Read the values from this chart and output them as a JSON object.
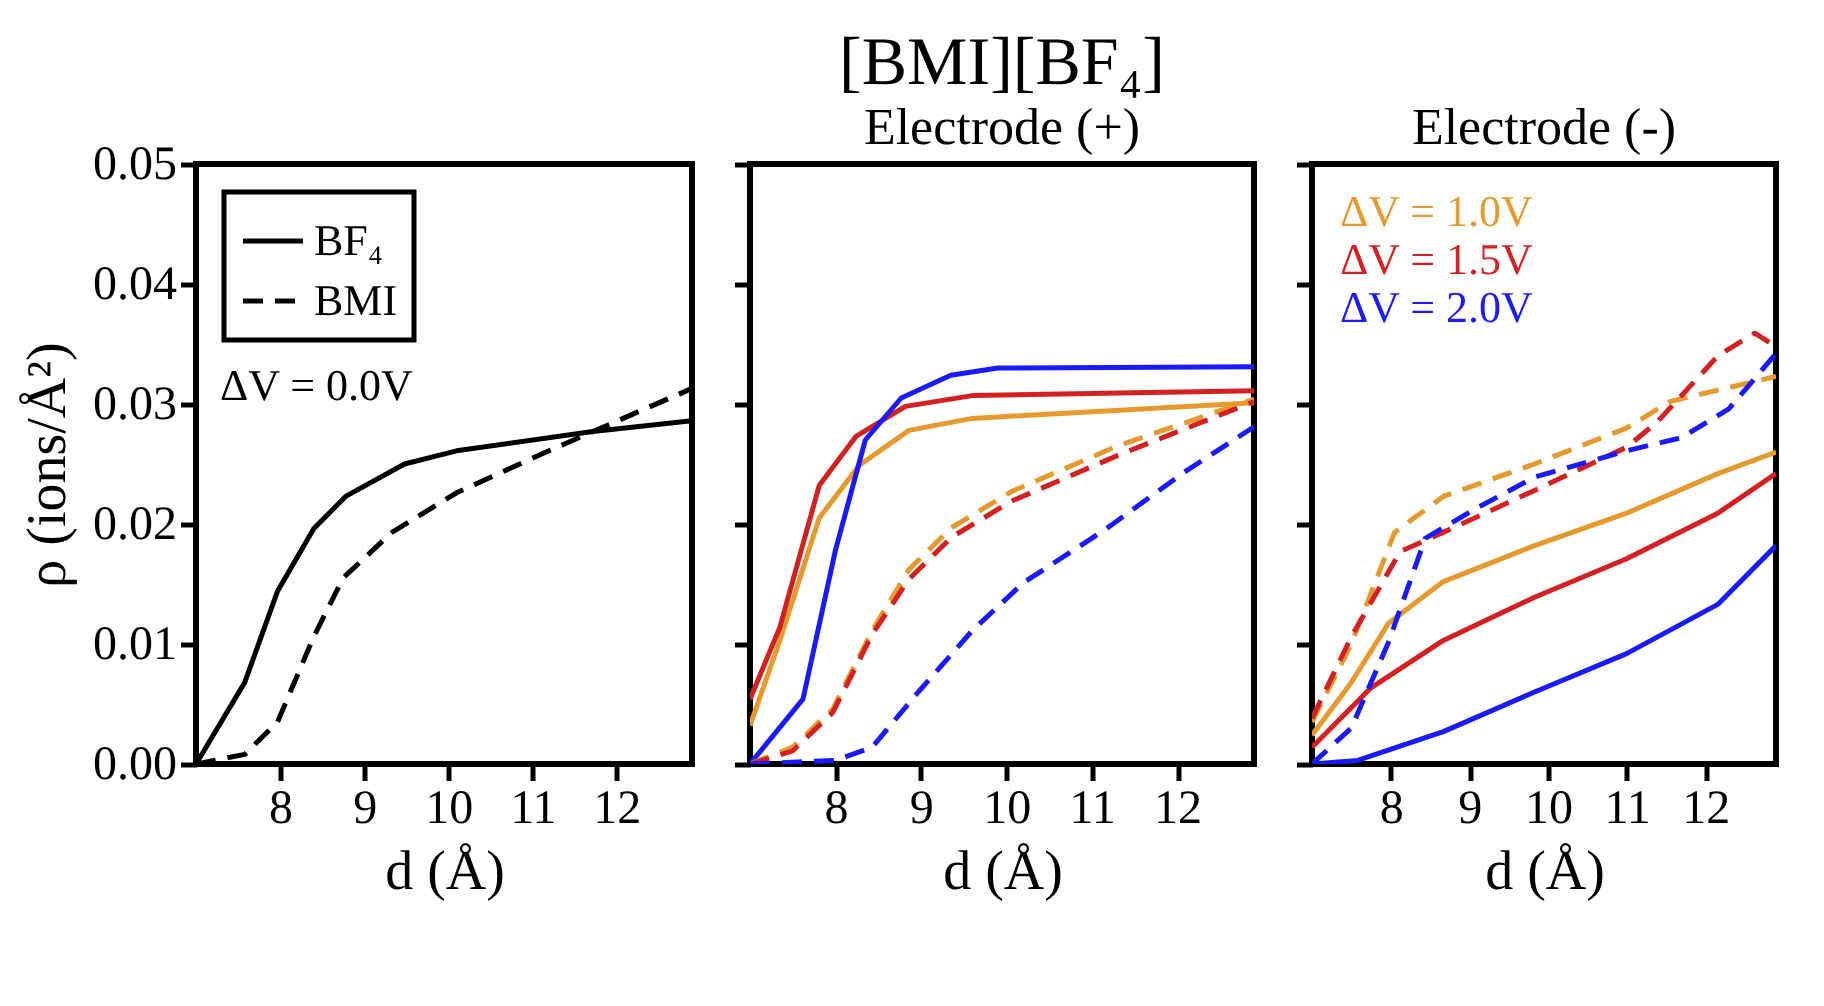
{
  "chart_data": [
    {
      "type": "line",
      "xlabel": "d (Å)",
      "ylabel": "ρ (ions/Å²)",
      "xlim": [
        7,
        12.9
      ],
      "ylim": [
        0,
        0.05
      ],
      "xticks": [
        8,
        9,
        10,
        11,
        12
      ],
      "yticks": [
        {
          "value": 0,
          "label": "0.00"
        },
        {
          "value": 0.01,
          "label": "0.01"
        },
        {
          "value": 0.02,
          "label": "0.02"
        },
        {
          "value": 0.03,
          "label": "0.03"
        },
        {
          "value": 0.04,
          "label": "0.04"
        },
        {
          "value": 0.05,
          "label": "0.05"
        }
      ],
      "legend": "top left",
      "annotations": [
        "ΔV = 0.0V"
      ],
      "series": [
        {
          "name": "BF₄",
          "color": "#000000",
          "line_style": "solid",
          "x": [
            7.0,
            7.58,
            7.97,
            8.4,
            8.78,
            9.48,
            10.1,
            11.72,
            12.9
          ],
          "values": [
            0,
            0.0068,
            0.0144,
            0.0196,
            0.0223,
            0.025,
            0.0261,
            0.0277,
            0.0286
          ]
        },
        {
          "name": "BMI",
          "color": "#000000",
          "line_style": "dashed",
          "x": [
            7.0,
            7.58,
            7.97,
            8.4,
            8.75,
            9.33,
            10.1,
            11.1,
            11.72,
            12.9
          ],
          "values": [
            0,
            0.0008,
            0.0035,
            0.0106,
            0.0155,
            0.0193,
            0.0226,
            0.0258,
            0.0277,
            0.0313
          ]
        }
      ]
    },
    {
      "type": "line",
      "title": "[BMI][BF₄]",
      "subtitle": "Electrode (+)",
      "xlabel": "d (Å)",
      "xlim": [
        7,
        12.9
      ],
      "ylim": [
        0,
        0.05
      ],
      "xticks": [
        8,
        9,
        10,
        11,
        12
      ],
      "yticks": [
        {
          "value": 0,
          "label": null
        },
        {
          "value": 0.01,
          "label": null
        },
        {
          "value": 0.02,
          "label": null
        },
        {
          "value": 0.03,
          "label": null
        },
        {
          "value": 0.04,
          "label": null
        },
        {
          "value": 0.05,
          "label": null
        }
      ],
      "tick_labels": "x",
      "series": [
        {
          "color": "#e69a2e",
          "line_style": "solid",
          "x": [
            7.0,
            7.35,
            7.81,
            8.28,
            8.86,
            9.6,
            12.9
          ],
          "values": [
            0.0032,
            0.0103,
            0.0205,
            0.0249,
            0.0278,
            0.0288,
            0.0301
          ]
        },
        {
          "color": "#d42020",
          "line_style": "solid",
          "x": [
            7.0,
            7.35,
            7.81,
            8.24,
            8.82,
            9.6,
            12.9
          ],
          "values": [
            0.0054,
            0.0114,
            0.0232,
            0.0273,
            0.0298,
            0.0307,
            0.0311
          ]
        },
        {
          "color": "#1a1aff",
          "line_style": "solid",
          "x": [
            7.0,
            7.62,
            8.0,
            8.35,
            8.77,
            9.35,
            9.9,
            12.9
          ],
          "values": [
            0,
            0.0054,
            0.0178,
            0.027,
            0.0305,
            0.0324,
            0.033,
            0.0331
          ]
        },
        {
          "color": "#e69a2e",
          "line_style": "dashed",
          "x": [
            7.0,
            7.5,
            7.97,
            8.43,
            8.86,
            9.36,
            10.06,
            11.3,
            12.9
          ],
          "values": [
            0,
            0.0014,
            0.0046,
            0.0111,
            0.0162,
            0.0197,
            0.0227,
            0.0265,
            0.0304
          ]
        },
        {
          "color": "#d42020",
          "line_style": "dashed",
          "x": [
            7.0,
            7.5,
            7.97,
            8.43,
            8.86,
            9.36,
            10.06,
            11.3,
            12.9
          ],
          "values": [
            0,
            0.0011,
            0.0043,
            0.0108,
            0.0154,
            0.0189,
            0.0219,
            0.0257,
            0.0302
          ]
        },
        {
          "color": "#1a1aff",
          "line_style": "dashed",
          "x": [
            7.0,
            8.0,
            8.43,
            8.97,
            9.6,
            10.2,
            11.15,
            12.08,
            12.9
          ],
          "values": [
            0,
            0.0003,
            0.0014,
            0.006,
            0.0111,
            0.0151,
            0.0195,
            0.0243,
            0.0281
          ]
        }
      ]
    },
    {
      "type": "line",
      "subtitle": "Electrode (-)",
      "xlabel": "d (Å)",
      "xlim": [
        7,
        12.9
      ],
      "ylim": [
        0,
        0.05
      ],
      "xticks": [
        8,
        9,
        10,
        11,
        12
      ],
      "yticks": [
        {
          "value": 0,
          "label": null
        },
        {
          "value": 0.01,
          "label": null
        },
        {
          "value": 0.02,
          "label": null
        },
        {
          "value": 0.03,
          "label": null
        },
        {
          "value": 0.04,
          "label": null
        },
        {
          "value": 0.05,
          "label": null
        }
      ],
      "tick_labels": "x",
      "legend": "top left",
      "series": [
        {
          "name": "ΔV = 1.0V",
          "color": "#e69a2e",
          "line_style": "solid",
          "x": [
            7.0,
            7.5,
            7.97,
            8.67,
            9.83,
            11.0,
            12.16,
            12.9
          ],
          "values": [
            0.0024,
            0.0068,
            0.0117,
            0.0152,
            0.0182,
            0.0209,
            0.0242,
            0.026
          ]
        },
        {
          "name": "ΔV = 1.5V",
          "color": "#d42020",
          "line_style": "solid",
          "x": [
            7.0,
            7.74,
            8.67,
            9.83,
            11.0,
            12.16,
            12.9
          ],
          "values": [
            0.0014,
            0.0063,
            0.0103,
            0.0139,
            0.0171,
            0.0209,
            0.0242
          ]
        },
        {
          "name": "ΔV = 2.0V",
          "color": "#1a1aff",
          "line_style": "solid",
          "x": [
            7.0,
            7.58,
            8.67,
            9.83,
            11.0,
            12.16,
            12.9
          ],
          "values": [
            0,
            0.0003,
            0.0027,
            0.006,
            0.0092,
            0.0133,
            0.0182
          ]
        },
        {
          "color": "#e69a2e",
          "line_style": "dashed",
          "x": [
            7.0,
            7.5,
            8.05,
            8.67,
            9.83,
            11.0,
            11.55,
            12.9
          ],
          "values": [
            0.0035,
            0.01,
            0.0193,
            0.0223,
            0.025,
            0.028,
            0.0302,
            0.0323
          ]
        },
        {
          "color": "#d42020",
          "line_style": "dashed",
          "x": [
            7.0,
            7.5,
            8.12,
            8.67,
            9.83,
            11.0,
            11.39,
            12.16,
            12.63,
            12.9
          ],
          "values": [
            0.0038,
            0.0106,
            0.0177,
            0.0193,
            0.0228,
            0.0264,
            0.0285,
            0.034,
            0.0359,
            0.0348
          ]
        },
        {
          "color": "#1a1aff",
          "line_style": "dashed",
          "x": [
            7.0,
            7.5,
            7.97,
            8.44,
            9.06,
            9.83,
            11.0,
            11.7,
            12.3,
            12.9
          ],
          "values": [
            0,
            0.003,
            0.0101,
            0.0188,
            0.0212,
            0.0239,
            0.0261,
            0.0272,
            0.0296,
            0.0342
          ]
        }
      ]
    }
  ]
}
